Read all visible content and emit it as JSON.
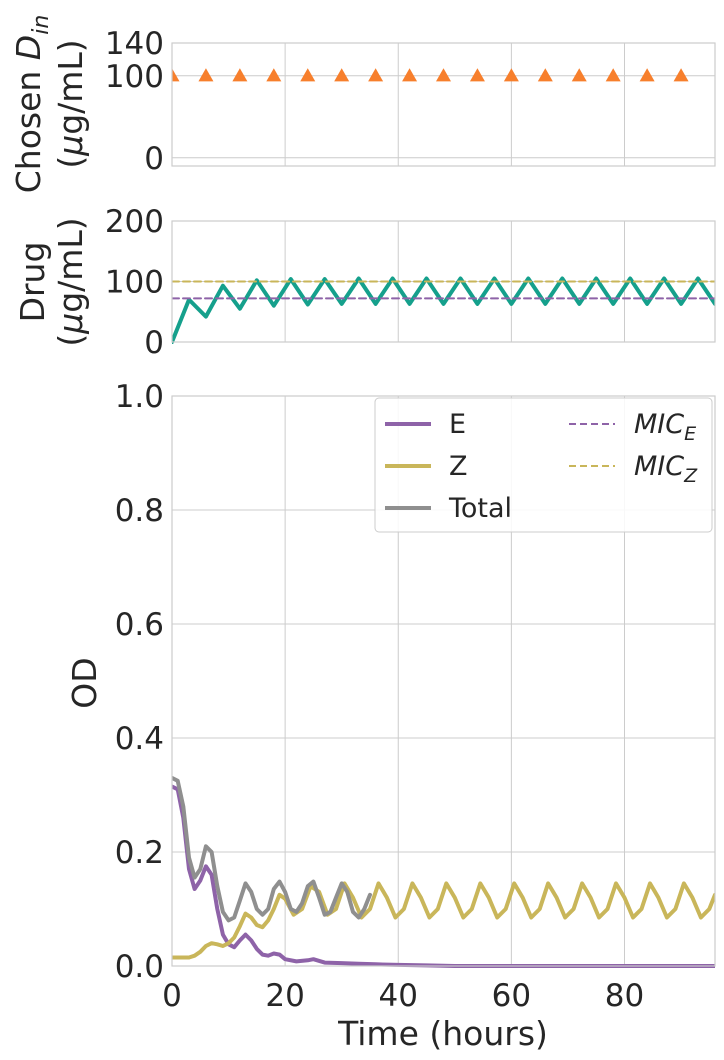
{
  "chart_data": [
    {
      "type": "scatter",
      "ylabel_line1": "Chosen ",
      "ylabel_D": "D",
      "ylabel_sub": "in",
      "ylabel_line2_mu": "μ",
      "ylabel_line2_rest": "g/mL)",
      "ylabel_line2_open": "(",
      "ylim": [
        -10,
        140
      ],
      "xlim": [
        0,
        96
      ],
      "yticks": [
        "140",
        "100",
        "0"
      ],
      "ytick_values": [
        140,
        100,
        0
      ],
      "xticks": [
        0,
        20,
        40,
        60,
        80
      ],
      "marker": "triangle",
      "color": "#F77F2C",
      "x": [
        0,
        6,
        12,
        18,
        24,
        30,
        36,
        42,
        48,
        54,
        60,
        66,
        72,
        78,
        84,
        90
      ],
      "y": [
        100,
        100,
        100,
        100,
        100,
        100,
        100,
        100,
        100,
        100,
        100,
        100,
        100,
        100,
        100,
        100
      ]
    },
    {
      "type": "line",
      "ylabel_line1": "Drug",
      "ylabel_line2_open": "(",
      "ylabel_line2_mu": "μ",
      "ylabel_line2_rest": "g/mL)",
      "ylim": [
        0,
        200
      ],
      "xlim": [
        0,
        96
      ],
      "yticks": [
        "200",
        "100",
        "0"
      ],
      "ytick_values": [
        200,
        100,
        0
      ],
      "xticks": [
        0,
        20,
        40,
        60,
        80
      ],
      "series": [
        {
          "color": "#15A08C",
          "style": "solid",
          "x": [
            0,
            3,
            6,
            9,
            12,
            15,
            18,
            21,
            24,
            27,
            30,
            33,
            36,
            39,
            42,
            45,
            48,
            51,
            54,
            57,
            60,
            63,
            66,
            69,
            72,
            75,
            78,
            81,
            84,
            87,
            90,
            93,
            96
          ],
          "y": [
            0,
            70,
            42,
            93,
            55,
            102,
            60,
            104,
            62,
            104,
            63,
            105,
            63,
            105,
            63,
            105,
            63,
            105,
            63,
            105,
            63,
            105,
            63,
            105,
            63,
            105,
            63,
            105,
            63,
            105,
            63,
            105,
            63
          ]
        },
        {
          "color": "#8E63A8",
          "style": "dashed",
          "x": [
            0,
            96
          ],
          "y": [
            72,
            72
          ]
        },
        {
          "color": "#C9B65A",
          "style": "dashed",
          "x": [
            0,
            96
          ],
          "y": [
            100,
            100
          ]
        }
      ]
    },
    {
      "type": "line",
      "xlabel": "Time (hours)",
      "ylabel": "OD",
      "xlim": [
        0,
        96
      ],
      "ylim": [
        0,
        1.0
      ],
      "xticks": [
        0,
        20,
        40,
        60,
        80
      ],
      "xtick_labels": [
        "0",
        "20",
        "40",
        "60",
        "80"
      ],
      "yticks": [
        0.0,
        0.2,
        0.4,
        0.6,
        0.8,
        1.0
      ],
      "ytick_labels": [
        "0.0",
        "0.2",
        "0.4",
        "0.6",
        "0.8",
        "1.0"
      ],
      "grid": true,
      "legend": {
        "placement": "top-right",
        "entries": [
          {
            "label": "E",
            "style": "solid",
            "color": "#8E63A8"
          },
          {
            "label": "Z",
            "style": "solid",
            "color": "#C9B65A"
          },
          {
            "label": "Total",
            "style": "solid",
            "color": "#8F8F8F"
          },
          {
            "label_main": "MIC",
            "label_sub": "E",
            "style": "dashed",
            "color": "#8E63A8"
          },
          {
            "label_main": "MIC",
            "label_sub": "Z",
            "style": "dashed",
            "color": "#C9B65A"
          }
        ]
      },
      "series": [
        {
          "name": "E",
          "color": "#8E63A8",
          "x": [
            0,
            1,
            2,
            3,
            4,
            5,
            6,
            7,
            8,
            9,
            10,
            11,
            12,
            13,
            14,
            15,
            16,
            17,
            18,
            19,
            20,
            22,
            24,
            25,
            27,
            30,
            33,
            36,
            40,
            45,
            50,
            60,
            96
          ],
          "y": [
            0.315,
            0.31,
            0.26,
            0.17,
            0.135,
            0.15,
            0.175,
            0.16,
            0.1,
            0.055,
            0.038,
            0.033,
            0.045,
            0.055,
            0.045,
            0.03,
            0.02,
            0.018,
            0.022,
            0.02,
            0.012,
            0.008,
            0.01,
            0.012,
            0.006,
            0.005,
            0.004,
            0.003,
            0.002,
            0.001,
            0.0,
            0.0,
            0.0
          ]
        },
        {
          "name": "Z",
          "color": "#C9B65A",
          "x": [
            0,
            1,
            2,
            3,
            4,
            5,
            6,
            7,
            8,
            9,
            10,
            11,
            12,
            13,
            14,
            15,
            16,
            17,
            18,
            19,
            20,
            21.5,
            23,
            24.5,
            26,
            27.5,
            29,
            30.5,
            32,
            33.5,
            35,
            36.5,
            38,
            39.5,
            41,
            42.5,
            44,
            45.5,
            47,
            48.5,
            50,
            51.5,
            53,
            54.5,
            56,
            57.5,
            59,
            60.5,
            62,
            63.5,
            65,
            66.5,
            68,
            69.5,
            71,
            72.5,
            74,
            75.5,
            77,
            78.5,
            80,
            81.5,
            83,
            84.5,
            86,
            87.5,
            89,
            90.5,
            92,
            93.5,
            95,
            96
          ],
          "y": [
            0.015,
            0.015,
            0.015,
            0.015,
            0.018,
            0.025,
            0.035,
            0.04,
            0.038,
            0.035,
            0.04,
            0.05,
            0.07,
            0.092,
            0.085,
            0.072,
            0.068,
            0.08,
            0.1,
            0.125,
            0.118,
            0.09,
            0.1,
            0.14,
            0.13,
            0.09,
            0.1,
            0.145,
            0.12,
            0.085,
            0.1,
            0.145,
            0.12,
            0.085,
            0.1,
            0.145,
            0.12,
            0.085,
            0.1,
            0.145,
            0.12,
            0.085,
            0.1,
            0.145,
            0.12,
            0.085,
            0.1,
            0.145,
            0.12,
            0.085,
            0.1,
            0.145,
            0.12,
            0.085,
            0.1,
            0.145,
            0.12,
            0.085,
            0.1,
            0.145,
            0.12,
            0.085,
            0.1,
            0.145,
            0.12,
            0.085,
            0.1,
            0.145,
            0.12,
            0.085,
            0.1,
            0.125
          ]
        },
        {
          "name": "Total",
          "color": "#8F8F8F",
          "x": [
            0,
            1,
            2,
            3,
            4,
            5,
            6,
            7,
            8,
            9,
            10,
            11,
            12,
            13,
            14,
            15,
            16,
            17,
            18,
            19,
            20,
            21,
            22,
            23,
            24,
            25,
            26,
            27,
            28,
            29,
            30,
            31,
            32,
            33,
            34,
            35
          ],
          "y": [
            0.33,
            0.325,
            0.28,
            0.19,
            0.155,
            0.17,
            0.21,
            0.2,
            0.14,
            0.095,
            0.08,
            0.085,
            0.115,
            0.145,
            0.13,
            0.1,
            0.09,
            0.1,
            0.135,
            0.148,
            0.13,
            0.1,
            0.095,
            0.11,
            0.14,
            0.148,
            0.12,
            0.09,
            0.095,
            0.12,
            0.145,
            0.13,
            0.095,
            0.085,
            0.1,
            0.125
          ]
        }
      ]
    }
  ]
}
